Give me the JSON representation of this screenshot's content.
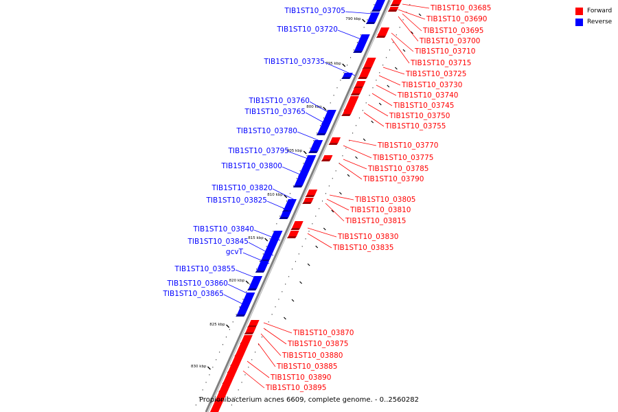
{
  "colors": {
    "forward": "#ff0000",
    "reverse": "#0000ff",
    "backbone": "#808080"
  },
  "legend": {
    "forward": "Forward",
    "reverse": "Reverse"
  },
  "caption": "Propionibacterium acnes 6609, complete genome. - 0..2560282",
  "kbp_ticks": [
    "790 kbp",
    "795 kbp",
    "800 kbp",
    "805 kbp",
    "810 kbp",
    "815 kbp",
    "820 kbp",
    "825 kbp",
    "830 kbp"
  ],
  "reverse_genes": [
    "TIB1ST10_03705",
    "TIB1ST10_03720",
    "TIB1ST10_03735",
    "TIB1ST10_03760",
    "TIB1ST10_03765",
    "TIB1ST10_03780",
    "TIB1ST10_03795",
    "TIB1ST10_03800",
    "TIB1ST10_03820",
    "TIB1ST10_03825",
    "TIB1ST10_03840",
    "TIB1ST10_03845",
    "gcvT",
    "TIB1ST10_03855",
    "TIB1ST10_03860",
    "TIB1ST10_03865"
  ],
  "forward_genes": [
    "TIB1ST10_03685",
    "TIB1ST10_03690",
    "TIB1ST10_03695",
    "TIB1ST10_03700",
    "TIB1ST10_03710",
    "TIB1ST10_03715",
    "TIB1ST10_03725",
    "TIB1ST10_03730",
    "TIB1ST10_03740",
    "TIB1ST10_03745",
    "TIB1ST10_03750",
    "TIB1ST10_03755",
    "TIB1ST10_03770",
    "TIB1ST10_03775",
    "TIB1ST10_03785",
    "TIB1ST10_03790",
    "TIB1ST10_03805",
    "TIB1ST10_03810",
    "TIB1ST10_03815",
    "TIB1ST10_03830",
    "TIB1ST10_03835",
    "TIB1ST10_03870",
    "TIB1ST10_03875",
    "TIB1ST10_03880",
    "TIB1ST10_03885",
    "TIB1ST10_03890",
    "TIB1ST10_03895"
  ]
}
